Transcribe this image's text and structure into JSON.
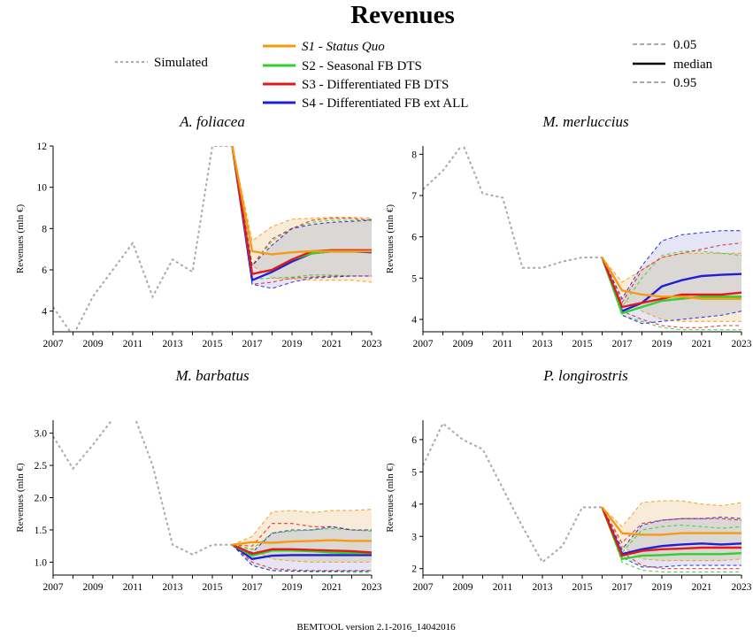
{
  "title": "Revenues",
  "footer": "BEMTOOL version 2.1-2016_14042016",
  "legend": {
    "simulated": "Simulated",
    "s1_prefix": "S1",
    "s1_rest": " - Status Quo",
    "s2": "S2 - Seasonal FB DTS",
    "s3": "S3 - Differentiated FB DTS",
    "s4": "S4 - Differentiated FB ext ALL",
    "q05": "0.05",
    "median": "median",
    "q95": "0.95"
  },
  "colors": {
    "simulated": "#aaaaaa",
    "s1": "#f39c12",
    "s2": "#2ed12e",
    "s3": "#e31a1c",
    "s4": "#1f1fd6",
    "band_s1": "#f6e6cc",
    "band_s4": "#dcdcf2",
    "band_overlap": "#e3ddd6"
  },
  "chart_data": [
    {
      "type": "line",
      "title": "A. foliacea",
      "ylabel": "Revenues (mln €)",
      "xlim": [
        2007,
        2023
      ],
      "ylim": [
        3,
        12
      ],
      "yticks": [
        4,
        6,
        8,
        10,
        12
      ],
      "xticks": [
        2007,
        2009,
        2011,
        2013,
        2015,
        2017,
        2019,
        2021,
        2023
      ],
      "x_labels": [
        "2007",
        "2009",
        "2011",
        "2013",
        "2015",
        "2017",
        "2019",
        "2021",
        "2023"
      ],
      "y_labels": [
        "4",
        "6",
        "8",
        "10",
        "12"
      ],
      "simulated": {
        "x": [
          2007,
          2008,
          2009,
          2010,
          2011,
          2012,
          2013,
          2014,
          2015,
          2016
        ],
        "y": [
          4.2,
          2.8,
          4.7,
          6.0,
          7.3,
          4.7,
          6.5,
          5.9,
          12.0,
          12.0
        ]
      },
      "years": [
        2016,
        2017,
        2018,
        2019,
        2020,
        2021,
        2022,
        2023
      ],
      "series": [
        {
          "name": "S1",
          "median": [
            12.0,
            6.9,
            6.75,
            6.85,
            6.9,
            6.9,
            6.9,
            6.9
          ],
          "q05": [
            12.0,
            6.2,
            5.6,
            5.55,
            5.5,
            5.5,
            5.5,
            5.4
          ],
          "q95": [
            12.0,
            7.4,
            8.1,
            8.45,
            8.5,
            8.55,
            8.55,
            8.5
          ]
        },
        {
          "name": "S2",
          "median": [
            12.0,
            5.8,
            6.0,
            6.5,
            6.8,
            6.9,
            6.9,
            6.9
          ],
          "q05": [
            12.0,
            5.55,
            5.6,
            5.65,
            5.75,
            5.75,
            5.7,
            5.7
          ],
          "q95": [
            12.0,
            6.2,
            7.4,
            8.0,
            8.3,
            8.4,
            8.4,
            8.45
          ]
        },
        {
          "name": "S3",
          "median": [
            12.0,
            5.8,
            6.0,
            6.5,
            6.9,
            6.95,
            6.95,
            6.95
          ],
          "q05": [
            12.0,
            5.3,
            5.4,
            5.6,
            5.65,
            5.7,
            5.7,
            5.7
          ],
          "q95": [
            12.0,
            6.2,
            7.5,
            8.0,
            8.4,
            8.5,
            8.5,
            8.4
          ]
        },
        {
          "name": "S4",
          "median": [
            12.0,
            5.5,
            5.9,
            6.4,
            6.8,
            6.9,
            6.9,
            6.85
          ],
          "q05": [
            12.0,
            5.3,
            5.1,
            5.4,
            5.6,
            5.65,
            5.7,
            5.7
          ],
          "q95": [
            12.0,
            6.2,
            7.2,
            8.0,
            8.2,
            8.3,
            8.35,
            8.4
          ]
        }
      ]
    },
    {
      "type": "line",
      "title": "M. merluccius",
      "ylabel": "Revenues (mln €)",
      "xlim": [
        2007,
        2023
      ],
      "ylim": [
        3.7,
        8.2
      ],
      "yticks": [
        4,
        5,
        6,
        7,
        8
      ],
      "xticks": [
        2007,
        2009,
        2011,
        2013,
        2015,
        2017,
        2019,
        2021,
        2023
      ],
      "x_labels": [
        "2007",
        "2009",
        "2011",
        "2013",
        "2015",
        "2017",
        "2019",
        "2021",
        "2023"
      ],
      "y_labels": [
        "4",
        "5",
        "6",
        "7",
        "8"
      ],
      "simulated": {
        "x": [
          2007,
          2008,
          2009,
          2010,
          2011,
          2012,
          2013,
          2014,
          2015,
          2016
        ],
        "y": [
          7.15,
          7.6,
          8.25,
          7.05,
          6.95,
          5.25,
          5.25,
          5.4,
          5.5,
          5.5
        ]
      },
      "years": [
        2016,
        2017,
        2018,
        2019,
        2020,
        2021,
        2022,
        2023
      ],
      "series": [
        {
          "name": "S1",
          "median": [
            5.5,
            4.7,
            4.6,
            4.55,
            4.55,
            4.5,
            4.5,
            4.5
          ],
          "q05": [
            5.5,
            4.5,
            4.2,
            4.0,
            3.95,
            3.95,
            3.95,
            3.95
          ],
          "q95": [
            5.5,
            4.9,
            5.2,
            5.5,
            5.6,
            5.6,
            5.6,
            5.6
          ]
        },
        {
          "name": "S2",
          "median": [
            5.5,
            4.15,
            4.3,
            4.45,
            4.5,
            4.55,
            4.55,
            4.55
          ],
          "q05": [
            5.5,
            4.1,
            3.95,
            3.8,
            3.75,
            3.75,
            3.75,
            3.75
          ],
          "q95": [
            5.5,
            4.3,
            5.0,
            5.55,
            5.65,
            5.65,
            5.6,
            5.55
          ]
        },
        {
          "name": "S3",
          "median": [
            5.5,
            4.3,
            4.4,
            4.5,
            4.6,
            4.6,
            4.6,
            4.65
          ],
          "q05": [
            5.5,
            4.2,
            4.0,
            3.85,
            3.8,
            3.8,
            3.85,
            3.85
          ],
          "q95": [
            5.5,
            4.4,
            5.2,
            5.5,
            5.6,
            5.7,
            5.8,
            5.85
          ]
        },
        {
          "name": "S4",
          "median": [
            5.5,
            4.2,
            4.4,
            4.8,
            4.95,
            5.05,
            5.08,
            5.1
          ],
          "q05": [
            5.5,
            4.1,
            3.9,
            3.95,
            4.0,
            4.05,
            4.1,
            4.2
          ],
          "q95": [
            5.5,
            4.5,
            5.3,
            5.9,
            6.05,
            6.1,
            6.15,
            6.15
          ]
        }
      ]
    },
    {
      "type": "line",
      "title": "M. barbatus",
      "ylabel": "Revenues (mln €)",
      "xlim": [
        2007,
        2023
      ],
      "ylim": [
        0.8,
        3.2
      ],
      "yticks": [
        1.0,
        1.5,
        2.0,
        2.5,
        3.0
      ],
      "xticks": [
        2007,
        2009,
        2011,
        2013,
        2015,
        2017,
        2019,
        2021,
        2023
      ],
      "x_labels": [
        "2007",
        "2009",
        "2011",
        "2013",
        "2015",
        "2017",
        "2019",
        "2021",
        "2023"
      ],
      "y_labels": [
        "1.0",
        "1.5",
        "2.0",
        "2.5",
        "3.0"
      ],
      "simulated": {
        "x": [
          2007,
          2008,
          2009,
          2010,
          2011,
          2012,
          2013,
          2014,
          2015,
          2016
        ],
        "y": [
          2.95,
          2.45,
          2.82,
          3.22,
          3.33,
          2.5,
          1.27,
          1.12,
          1.27,
          1.27
        ]
      },
      "years": [
        2016,
        2017,
        2018,
        2019,
        2020,
        2021,
        2022,
        2023
      ],
      "series": [
        {
          "name": "S1",
          "median": [
            1.27,
            1.31,
            1.3,
            1.32,
            1.33,
            1.34,
            1.33,
            1.33
          ],
          "q05": [
            1.27,
            1.2,
            1.05,
            1.02,
            1.0,
            1.0,
            1.0,
            1.0
          ],
          "q95": [
            1.27,
            1.4,
            1.78,
            1.8,
            1.77,
            1.8,
            1.8,
            1.82
          ]
        },
        {
          "name": "S2",
          "median": [
            1.27,
            1.1,
            1.18,
            1.18,
            1.17,
            1.15,
            1.14,
            1.14
          ],
          "q05": [
            1.27,
            0.95,
            0.87,
            0.86,
            0.85,
            0.85,
            0.84,
            0.84
          ],
          "q95": [
            1.27,
            1.2,
            1.45,
            1.48,
            1.5,
            1.52,
            1.5,
            1.48
          ]
        },
        {
          "name": "S3",
          "median": [
            1.27,
            1.13,
            1.2,
            1.2,
            1.19,
            1.18,
            1.17,
            1.15
          ],
          "q05": [
            1.27,
            1.0,
            0.9,
            0.88,
            0.87,
            0.87,
            0.87,
            0.87
          ],
          "q95": [
            1.27,
            1.25,
            1.6,
            1.6,
            1.55,
            1.55,
            1.5,
            1.5
          ]
        },
        {
          "name": "S4",
          "median": [
            1.27,
            1.05,
            1.1,
            1.11,
            1.11,
            1.11,
            1.11,
            1.11
          ],
          "q05": [
            1.27,
            0.95,
            0.87,
            0.86,
            0.86,
            0.86,
            0.86,
            0.86
          ],
          "q95": [
            1.27,
            1.15,
            1.45,
            1.5,
            1.5,
            1.55,
            1.5,
            1.5
          ]
        }
      ]
    },
    {
      "type": "line",
      "title": "P. longirostris",
      "ylabel": "Revenues (mln €)",
      "xlim": [
        2007,
        2023
      ],
      "ylim": [
        1.8,
        6.6
      ],
      "yticks": [
        2,
        3,
        4,
        5,
        6
      ],
      "xticks": [
        2007,
        2009,
        2011,
        2013,
        2015,
        2017,
        2019,
        2021,
        2023
      ],
      "x_labels": [
        "2007",
        "2009",
        "2011",
        "2013",
        "2015",
        "2017",
        "2019",
        "2021",
        "2023"
      ],
      "y_labels": [
        "2",
        "3",
        "4",
        "5",
        "6"
      ],
      "simulated": {
        "x": [
          2007,
          2008,
          2009,
          2010,
          2011,
          2012,
          2013,
          2014,
          2015,
          2016
        ],
        "y": [
          5.2,
          6.5,
          6.0,
          5.7,
          4.5,
          3.3,
          2.2,
          2.7,
          3.9,
          3.9
        ]
      },
      "years": [
        2016,
        2017,
        2018,
        2019,
        2020,
        2021,
        2022,
        2023
      ],
      "series": [
        {
          "name": "S1",
          "median": [
            3.9,
            3.1,
            3.05,
            3.05,
            3.1,
            3.1,
            3.1,
            3.1
          ],
          "q05": [
            3.9,
            2.7,
            2.3,
            2.25,
            2.25,
            2.25,
            2.25,
            2.3
          ],
          "q95": [
            3.9,
            3.3,
            4.05,
            4.1,
            4.1,
            4.0,
            3.95,
            4.05
          ]
        },
        {
          "name": "S2",
          "median": [
            3.9,
            2.3,
            2.4,
            2.42,
            2.45,
            2.45,
            2.45,
            2.48
          ],
          "q05": [
            3.9,
            2.2,
            1.95,
            1.9,
            1.9,
            1.9,
            1.9,
            1.9
          ],
          "q95": [
            3.9,
            2.5,
            3.2,
            3.3,
            3.35,
            3.3,
            3.25,
            3.3
          ]
        },
        {
          "name": "S3",
          "median": [
            3.9,
            2.4,
            2.55,
            2.6,
            2.62,
            2.65,
            2.65,
            2.65
          ],
          "q05": [
            3.9,
            2.5,
            2.1,
            2.0,
            2.0,
            2.0,
            2.0,
            2.0
          ],
          "q95": [
            3.9,
            2.8,
            3.4,
            3.5,
            3.55,
            3.55,
            3.55,
            3.5
          ]
        },
        {
          "name": "S4",
          "median": [
            3.9,
            2.45,
            2.6,
            2.7,
            2.75,
            2.78,
            2.75,
            2.78
          ],
          "q05": [
            3.9,
            2.35,
            2.05,
            2.05,
            2.1,
            2.1,
            2.1,
            2.1
          ],
          "q95": [
            3.9,
            2.6,
            3.35,
            3.5,
            3.55,
            3.55,
            3.6,
            3.55
          ]
        }
      ]
    }
  ]
}
